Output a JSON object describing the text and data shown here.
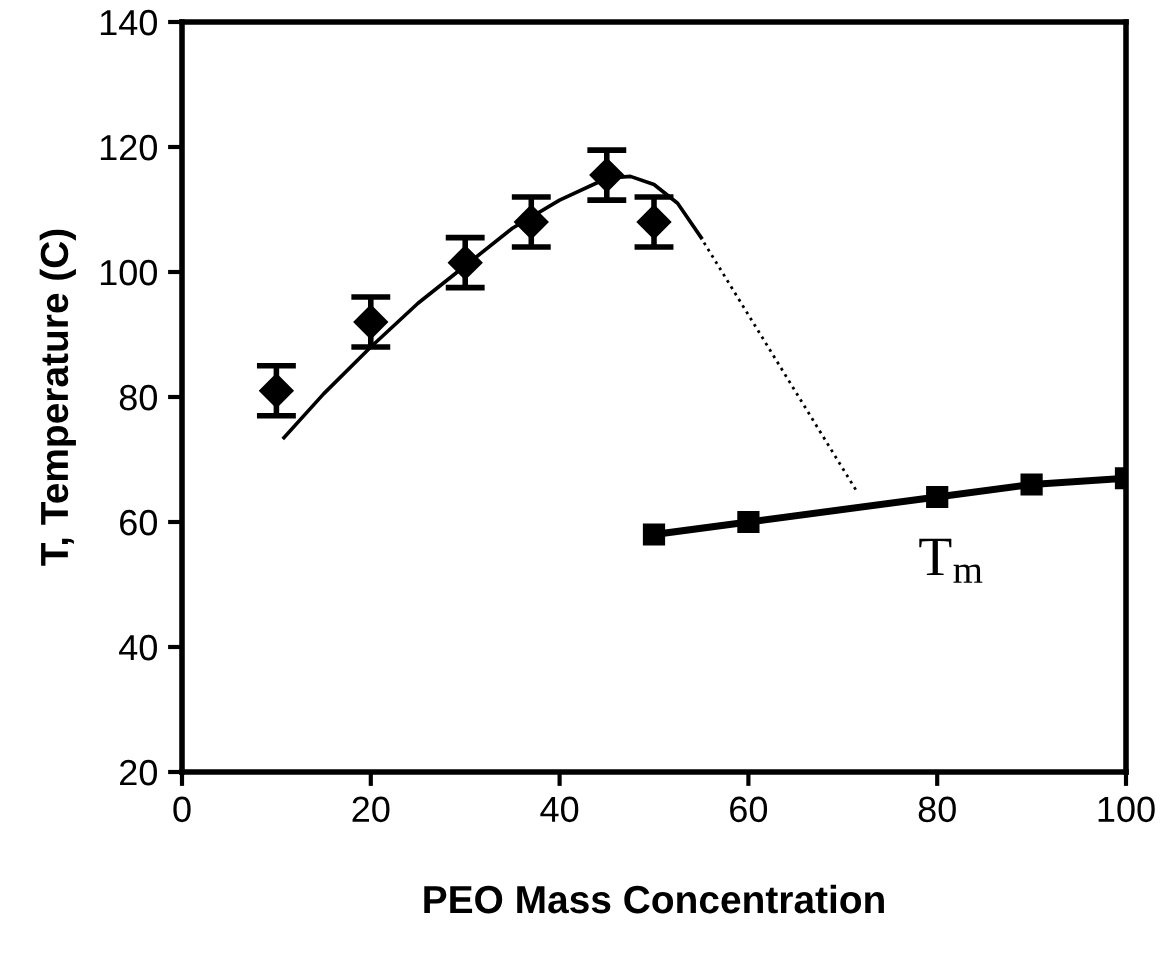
{
  "chart_data": {
    "type": "scatter",
    "xlabel": "PEO Mass Concentration",
    "ylabel": "T, Temperature (C)",
    "xlim": [
      0,
      100
    ],
    "xticks": [
      0,
      20,
      40,
      60,
      80,
      100
    ],
    "ylim": [
      20,
      140
    ],
    "yticks": [
      20,
      40,
      60,
      80,
      100,
      120,
      140
    ],
    "grid": false,
    "series": [
      {
        "color": "#000000",
        "marker": "diamond",
        "x": [
          10,
          20,
          30,
          37,
          45,
          50
        ],
        "values": [
          81,
          92,
          101.5,
          108,
          115.5,
          108
        ],
        "errors": [
          4,
          4,
          4,
          4,
          4,
          4
        ]
      },
      {
        "type": "line",
        "color": "#000000",
        "marker": "none",
        "line_style": "solid",
        "x": [
          10.8,
          15,
          20,
          25,
          30,
          35,
          40,
          45,
          47.5,
          50,
          52.5,
          55
        ],
        "values": [
          73.5,
          80.5,
          88,
          95,
          101,
          107,
          111.5,
          115,
          115.3,
          114,
          111,
          105.5
        ]
      },
      {
        "type": "line",
        "color": "#000000",
        "marker": "none",
        "line_style": "dotted",
        "x": [
          55.3,
          71.4
        ],
        "values": [
          104.7,
          65.1
        ]
      },
      {
        "type": "line",
        "color": "#000000",
        "marker": "square",
        "line_style": "solid",
        "x": [
          50,
          60,
          80,
          90,
          100
        ],
        "values": [
          58,
          60,
          64,
          66,
          67
        ]
      }
    ],
    "annotations": [
      "T$_{m}$"
    ]
  }
}
